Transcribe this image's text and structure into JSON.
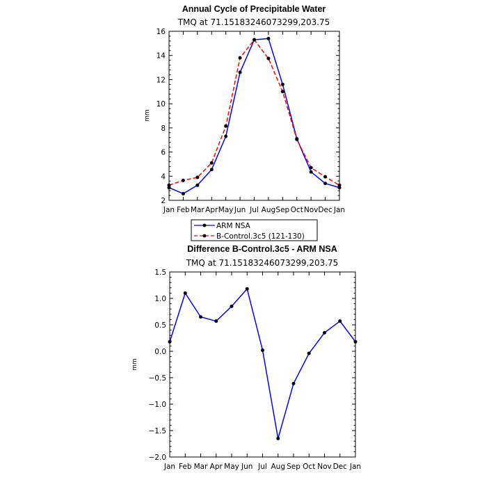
{
  "chart_data": [
    {
      "type": "line",
      "title": "Annual Cycle of Precipitable Water",
      "subtitle": "TMQ at 71.15183246073299,203.75",
      "ylabel": "mm",
      "categories": [
        "Jan",
        "Feb",
        "Mar",
        "Apr",
        "May",
        "Jun",
        "Jul",
        "Aug",
        "Sep",
        "Oct",
        "Nov",
        "Dec",
        "Jan"
      ],
      "ylim": [
        2,
        16
      ],
      "yticks": [
        "2",
        "4",
        "6",
        "8",
        "10",
        "12",
        "14",
        "16"
      ],
      "series": [
        {
          "name": "ARM NSA",
          "color": "#0000ff",
          "dash": "solid",
          "values": [
            3.05,
            2.55,
            3.25,
            4.55,
            7.3,
            12.6,
            15.3,
            15.4,
            11.6,
            7.1,
            4.35,
            3.4,
            3.05
          ]
        },
        {
          "name": "B-Control.3c5 (121-130)",
          "color": "#ff0000",
          "dash": "dashed",
          "values": [
            3.25,
            3.65,
            3.9,
            5.1,
            8.15,
            13.8,
            15.3,
            13.75,
            11.0,
            7.05,
            4.7,
            3.95,
            3.25
          ]
        }
      ],
      "legend": "below"
    },
    {
      "type": "line",
      "title": "Difference B-Control.3c5 - ARM NSA",
      "subtitle": "TMQ at 71.15183246073299,203.75",
      "ylabel": "mm",
      "categories": [
        "Jan",
        "Feb",
        "Mar",
        "Apr",
        "May",
        "Jun",
        "Jul",
        "Aug",
        "Sep",
        "Oct",
        "Nov",
        "Dec",
        "Jan"
      ],
      "ylim": [
        -2.0,
        1.5
      ],
      "yticks": [
        "1.5",
        "1.0",
        "0.5",
        "0.0",
        "−0.5",
        "−1.0",
        "−1.5",
        "−2.0"
      ],
      "series": [
        {
          "color": "#0000ff",
          "dash": "solid",
          "values": [
            0.18,
            1.1,
            0.65,
            0.57,
            0.85,
            1.18,
            0.02,
            -1.65,
            -0.61,
            -0.04,
            0.35,
            0.57,
            0.18
          ]
        }
      ]
    }
  ]
}
